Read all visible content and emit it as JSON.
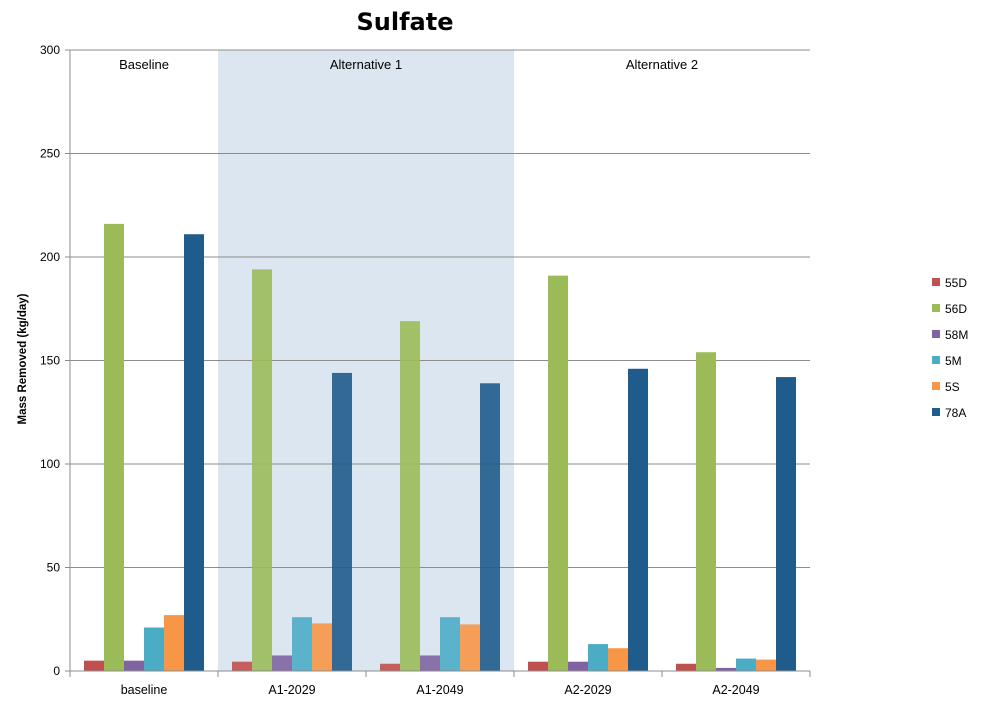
{
  "chart_data": {
    "type": "bar",
    "title": "Sulfate",
    "ylabel": "Mass Removed (kg/day)",
    "xlabel": "",
    "ylim": [
      0,
      300
    ],
    "yticks": [
      0,
      50,
      100,
      150,
      200,
      250,
      300
    ],
    "grid": true,
    "legend_position": "right",
    "categories": [
      "baseline",
      "A1-2029",
      "A1-2049",
      "A2-2029",
      "A2-2049"
    ],
    "regions": [
      {
        "label": "Baseline",
        "categories": [
          "baseline"
        ],
        "shaded": false
      },
      {
        "label": "Alternative 1",
        "categories": [
          "A1-2029",
          "A1-2049"
        ],
        "shaded": true,
        "color": "#dce6f1"
      },
      {
        "label": "Alternative 2",
        "categories": [
          "A2-2029",
          "A2-2049"
        ],
        "shaded": false
      }
    ],
    "series": [
      {
        "name": "55D",
        "color": "#c0504d",
        "values": [
          5,
          4.5,
          3.5,
          4.5,
          3.5
        ]
      },
      {
        "name": "56D",
        "color": "#9bbb59",
        "values": [
          216,
          194,
          169,
          191,
          154
        ]
      },
      {
        "name": "58M",
        "color": "#8064a2",
        "values": [
          5,
          7.5,
          7.5,
          4.5,
          1.5
        ]
      },
      {
        "name": "5M",
        "color": "#4bacc6",
        "values": [
          21,
          26,
          26,
          13,
          6
        ]
      },
      {
        "name": "5S",
        "color": "#f79646",
        "values": [
          27,
          23,
          22.5,
          11,
          5.5
        ]
      },
      {
        "name": "78A",
        "color": "#1f5c8b",
        "values": [
          211,
          144,
          139,
          146,
          142
        ]
      }
    ]
  }
}
